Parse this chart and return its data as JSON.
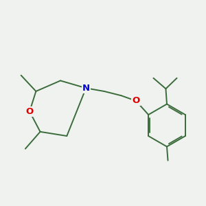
{
  "background_color": "#eff2ef",
  "bond_color": "#3a6b3a",
  "bond_width": 1.4,
  "atom_colors": {
    "O": "#dd0000",
    "N": "#0000cc"
  },
  "figsize": [
    3.0,
    3.0
  ],
  "dpi": 100
}
